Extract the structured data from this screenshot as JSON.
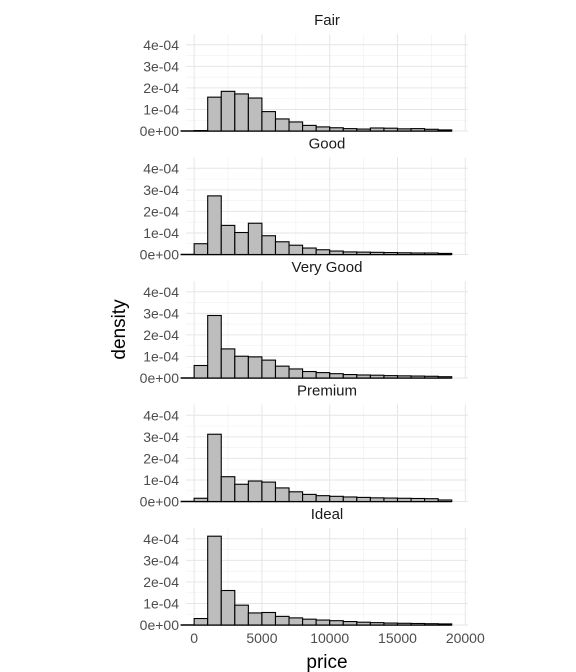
{
  "chart_data": {
    "type": "bar",
    "subtype": "faceted-histogram",
    "xlabel": "price",
    "ylabel": "density",
    "xlim": [
      -600,
      20200
    ],
    "ylim": [
      0,
      0.00045
    ],
    "x_ticks": [
      0,
      5000,
      10000,
      15000,
      20000
    ],
    "x_tick_labels": [
      "0",
      "5000",
      "10000",
      "15000",
      "20000"
    ],
    "y_ticks": [
      0,
      0.0001,
      0.0002,
      0.0003,
      0.0004
    ],
    "y_tick_labels": [
      "0e+00",
      "1e-04",
      "2e-04",
      "3e-04",
      "4e-04"
    ],
    "grid": true,
    "bar_fill": "#bdbdbd",
    "bar_stroke": "#000000",
    "bins": [
      0,
      1000,
      2000,
      3000,
      4000,
      5000,
      6000,
      7000,
      8000,
      9000,
      10000,
      11000,
      12000,
      13000,
      14000,
      15000,
      16000,
      17000,
      18000,
      19000
    ],
    "facets": [
      {
        "name": "Fair",
        "values": [
          2e-06,
          0.000157,
          0.000184,
          0.000172,
          0.000153,
          9e-05,
          5.6e-05,
          4.2e-05,
          2.6e-05,
          1.9e-05,
          1.5e-05,
          1.1e-05,
          9e-06,
          1.4e-05,
          1.3e-05,
          1e-05,
          1.1e-05,
          8e-06,
          5e-06
        ]
      },
      {
        "name": "Good",
        "values": [
          5e-05,
          0.000272,
          0.000135,
          0.000102,
          0.000145,
          8.7e-05,
          5.9e-05,
          4.3e-05,
          3e-05,
          2.2e-05,
          1.6e-05,
          1.2e-05,
          1.1e-05,
          1e-05,
          9e-06,
          8e-06,
          7e-06,
          7e-06,
          5e-06
        ]
      },
      {
        "name": "Very Good",
        "values": [
          5.8e-05,
          0.00029,
          0.000135,
          0.000101,
          9.8e-05,
          8.3e-05,
          5.5e-05,
          4.2e-05,
          3e-05,
          2.5e-05,
          2e-05,
          1.6e-05,
          1.4e-05,
          1.3e-05,
          1.1e-05,
          1e-05,
          9e-06,
          8e-06,
          6e-06
        ]
      },
      {
        "name": "Premium",
        "values": [
          1.5e-05,
          0.000312,
          0.000115,
          8e-05,
          9.5e-05,
          9e-05,
          6.3e-05,
          4.5e-05,
          3.3e-05,
          2.7e-05,
          2.4e-05,
          2.1e-05,
          1.9e-05,
          1.7e-05,
          1.6e-05,
          1.5e-05,
          1.4e-05,
          1.3e-05,
          7e-06
        ]
      },
      {
        "name": "Ideal",
        "values": [
          3e-05,
          0.000412,
          0.00016,
          9.2e-05,
          5.6e-05,
          5.8e-05,
          4e-05,
          3.3e-05,
          2.7e-05,
          2.3e-05,
          2e-05,
          1.6e-05,
          1.3e-05,
          1.1e-05,
          9e-06,
          8e-06,
          7e-06,
          6e-06,
          5e-06
        ]
      }
    ]
  }
}
